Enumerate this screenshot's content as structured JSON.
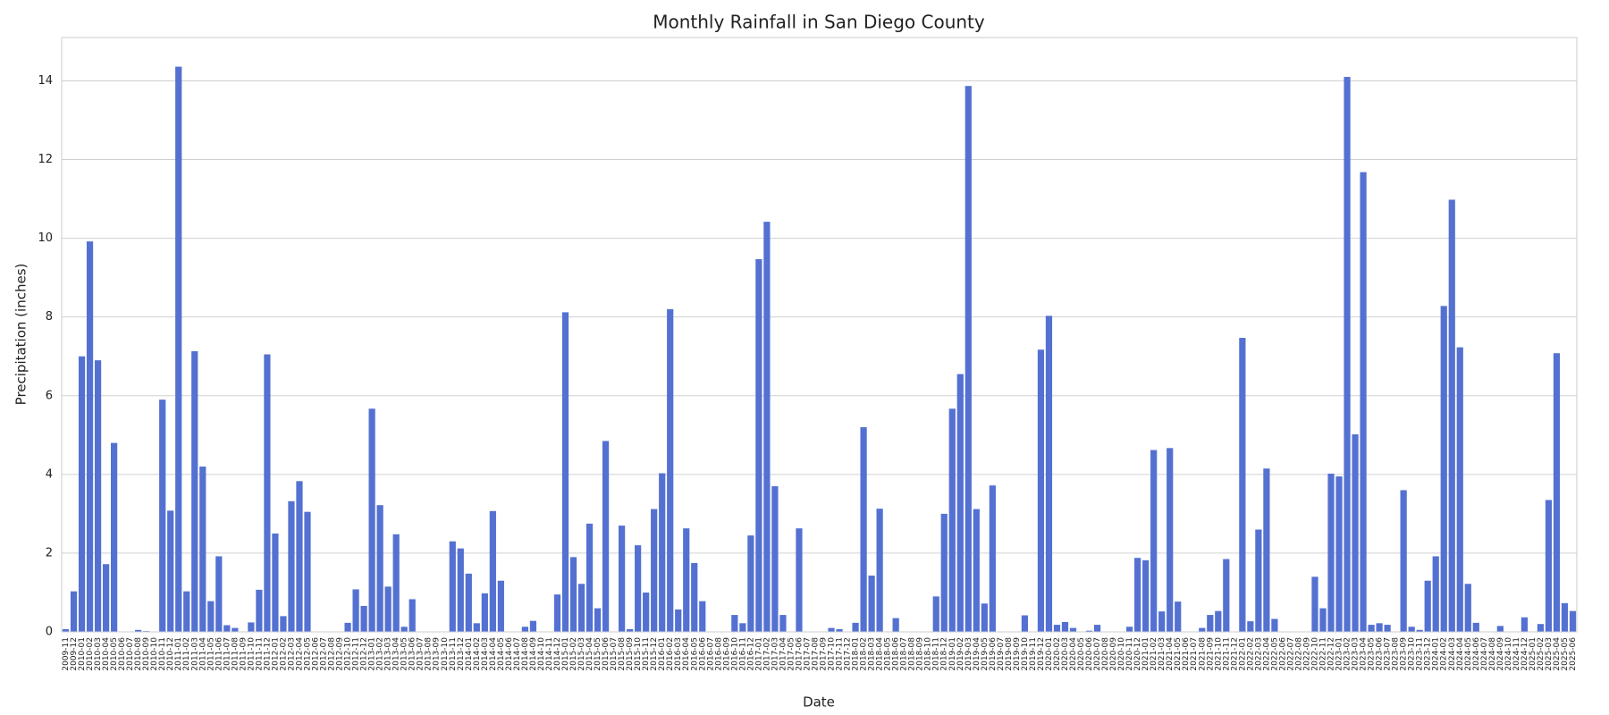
{
  "chart_data": {
    "type": "bar",
    "title": "Monthly Rainfall in San Diego County",
    "x_label": "Date",
    "y_label": "Precipitation (inches)",
    "categories": [
      "2009-11",
      "2009-12",
      "2010-01",
      "2010-02",
      "2010-03",
      "2010-04",
      "2010-05",
      "2010-06",
      "2010-07",
      "2010-08",
      "2010-09",
      "2010-10",
      "2010-11",
      "2010-12",
      "2011-01",
      "2011-02",
      "2011-03",
      "2011-04",
      "2011-05",
      "2011-06",
      "2011-07",
      "2011-08",
      "2011-09",
      "2011-10",
      "2011-11",
      "2011-12",
      "2012-01",
      "2012-02",
      "2012-03",
      "2012-04",
      "2012-05",
      "2012-06",
      "2012-07",
      "2012-08",
      "2012-09",
      "2012-10",
      "2012-11",
      "2012-12",
      "2013-01",
      "2013-02",
      "2013-03",
      "2013-04",
      "2013-05",
      "2013-06",
      "2013-07",
      "2013-08",
      "2013-09",
      "2013-10",
      "2013-11",
      "2013-12",
      "2014-01",
      "2014-02",
      "2014-03",
      "2014-04",
      "2014-05",
      "2014-06",
      "2014-07",
      "2014-08",
      "2014-09",
      "2014-10",
      "2014-11",
      "2014-12",
      "2015-01",
      "2015-02",
      "2015-03",
      "2015-04",
      "2015-05",
      "2015-06",
      "2015-07",
      "2015-08",
      "2015-09",
      "2015-10",
      "2015-11",
      "2015-12",
      "2016-01",
      "2016-02",
      "2016-03",
      "2016-04",
      "2016-05",
      "2016-06",
      "2016-07",
      "2016-08",
      "2016-09",
      "2016-10",
      "2016-11",
      "2016-12",
      "2017-01",
      "2017-02",
      "2017-03",
      "2017-04",
      "2017-05",
      "2017-06",
      "2017-07",
      "2017-08",
      "2017-09",
      "2017-10",
      "2017-11",
      "2017-12",
      "2018-01",
      "2018-02",
      "2018-03",
      "2018-04",
      "2018-05",
      "2018-06",
      "2018-07",
      "2018-08",
      "2018-09",
      "2018-10",
      "2018-11",
      "2018-12",
      "2019-01",
      "2019-02",
      "2019-03",
      "2019-04",
      "2019-05",
      "2019-06",
      "2019-07",
      "2019-08",
      "2019-09",
      "2019-10",
      "2019-11",
      "2019-12",
      "2020-01",
      "2020-02",
      "2020-03",
      "2020-04",
      "2020-05",
      "2020-06",
      "2020-07",
      "2020-08",
      "2020-09",
      "2020-10",
      "2020-11",
      "2020-12",
      "2021-01",
      "2021-02",
      "2021-03",
      "2021-04",
      "2021-05",
      "2021-06",
      "2021-07",
      "2021-08",
      "2021-09",
      "2021-10",
      "2021-11",
      "2021-12",
      "2022-01",
      "2022-02",
      "2022-03",
      "2022-04",
      "2022-05",
      "2022-06",
      "2022-07",
      "2022-08",
      "2022-09",
      "2022-10",
      "2022-11",
      "2022-12",
      "2023-01",
      "2023-02",
      "2023-03",
      "2023-04",
      "2023-05",
      "2023-06",
      "2023-07",
      "2023-08",
      "2023-09",
      "2023-10",
      "2023-11",
      "2023-12",
      "2024-01",
      "2024-02",
      "2024-03",
      "2024-04",
      "2024-05",
      "2024-06",
      "2024-07",
      "2024-08",
      "2024-09",
      "2024-10",
      "2024-11",
      "2024-12",
      "2025-01",
      "2025-02",
      "2025-03",
      "2025-04",
      "2025-05",
      "2025-06"
    ],
    "values": [
      0.07,
      1.03,
      7.0,
      9.92,
      6.9,
      1.72,
      4.8,
      0,
      0,
      0.05,
      0.02,
      0,
      5.9,
      3.08,
      14.36,
      1.03,
      7.13,
      4.2,
      0.78,
      1.92,
      0.17,
      0.1,
      0,
      0.24,
      1.07,
      7.05,
      2.5,
      0.4,
      3.32,
      3.83,
      3.05,
      0,
      0,
      0,
      0,
      0.23,
      1.08,
      0.66,
      5.67,
      3.22,
      1.15,
      2.48,
      0.13,
      0.83,
      0,
      0,
      0,
      0,
      2.3,
      2.12,
      1.48,
      0.22,
      0.98,
      3.07,
      1.3,
      0,
      0,
      0.13,
      0.28,
      0,
      0,
      0.95,
      8.12,
      1.9,
      1.22,
      2.75,
      0.6,
      4.85,
      0,
      2.7,
      0.07,
      2.2,
      1.0,
      3.12,
      4.03,
      8.2,
      0.57,
      2.63,
      1.75,
      0.78,
      0,
      0,
      0,
      0.43,
      0.22,
      2.45,
      9.47,
      10.42,
      3.7,
      0.43,
      0,
      2.63,
      0,
      0,
      0,
      0.1,
      0.07,
      0,
      0.23,
      5.2,
      1.43,
      3.13,
      0,
      0.35,
      0,
      0,
      0,
      0,
      0.9,
      3.0,
      5.67,
      6.55,
      13.87,
      3.12,
      0.72,
      3.72,
      0,
      0,
      0,
      0.42,
      0,
      7.17,
      8.03,
      0.18,
      0.25,
      0.1,
      0,
      0.03,
      0.18,
      0,
      0,
      0,
      0.13,
      1.88,
      1.82,
      4.62,
      0.52,
      4.67,
      0.77,
      0,
      0,
      0.1,
      0.43,
      0.53,
      1.85,
      0,
      7.47,
      0.27,
      2.6,
      4.15,
      0.33,
      0,
      0,
      0,
      0,
      1.4,
      0.6,
      4.02,
      3.95,
      14.1,
      5.02,
      11.68,
      0.18,
      0.22,
      0.18,
      0,
      3.6,
      0.13,
      0.05,
      1.3,
      1.92,
      8.28,
      10.98,
      7.23,
      1.22,
      0.23,
      0,
      0,
      0.15,
      0,
      0,
      0.37,
      0,
      0.2,
      3.35,
      7.08,
      0.73,
      0.53
    ],
    "color": "#5471d2",
    "ylim": [
      0,
      15.1
    ],
    "yticks": [
      0,
      2,
      4,
      6,
      8,
      10,
      12,
      14
    ],
    "grid": true
  }
}
